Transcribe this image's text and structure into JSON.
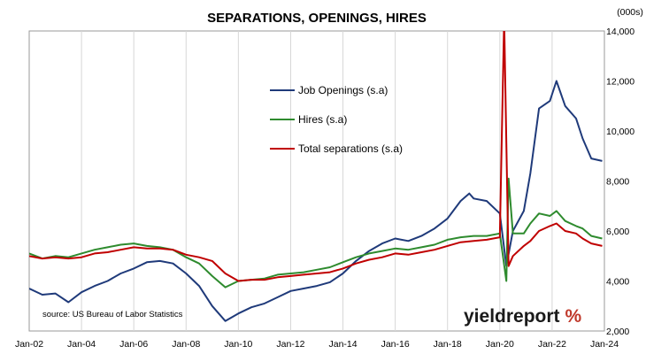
{
  "chart_data": {
    "type": "line",
    "title": "SEPARATIONS, OPENINGS, HIRES",
    "y_unit_label": "(000s)",
    "ylim": [
      2000,
      14000
    ],
    "y_ticks": [
      "2,000",
      "4,000",
      "6,000",
      "8,000",
      "10,000",
      "12,000",
      "14,000"
    ],
    "y_tick_values": [
      2000,
      4000,
      6000,
      8000,
      10000,
      12000,
      14000
    ],
    "x_range": [
      "2002-01",
      "2024-01"
    ],
    "x_ticks": [
      "Jan-02",
      "Jan-04",
      "Jan-06",
      "Jan-08",
      "Jan-10",
      "Jan-12",
      "Jan-14",
      "Jan-16",
      "Jan-18",
      "Jan-20",
      "Jan-22",
      "Jan-24"
    ],
    "x_tick_dates": [
      "2002-01",
      "2004-01",
      "2006-01",
      "2008-01",
      "2010-01",
      "2012-01",
      "2014-01",
      "2016-01",
      "2018-01",
      "2020-01",
      "2022-01",
      "2024-01"
    ],
    "grid": "vertical",
    "y_axis_side": "right",
    "legend_placement": "upper-center",
    "series": [
      {
        "name": "Job Openings (s.a)",
        "color": "#1f3a7a",
        "points": [
          [
            "2002-01",
            3700
          ],
          [
            "2002-07",
            3450
          ],
          [
            "2003-01",
            3500
          ],
          [
            "2003-07",
            3150
          ],
          [
            "2004-01",
            3550
          ],
          [
            "2004-07",
            3800
          ],
          [
            "2005-01",
            4000
          ],
          [
            "2005-07",
            4300
          ],
          [
            "2006-01",
            4500
          ],
          [
            "2006-07",
            4750
          ],
          [
            "2007-01",
            4800
          ],
          [
            "2007-07",
            4700
          ],
          [
            "2008-01",
            4300
          ],
          [
            "2008-07",
            3800
          ],
          [
            "2009-01",
            3000
          ],
          [
            "2009-07",
            2400
          ],
          [
            "2010-01",
            2700
          ],
          [
            "2010-07",
            2950
          ],
          [
            "2011-01",
            3100
          ],
          [
            "2011-07",
            3350
          ],
          [
            "2012-01",
            3600
          ],
          [
            "2012-07",
            3700
          ],
          [
            "2013-01",
            3800
          ],
          [
            "2013-07",
            3950
          ],
          [
            "2014-01",
            4300
          ],
          [
            "2014-07",
            4800
          ],
          [
            "2015-01",
            5200
          ],
          [
            "2015-07",
            5500
          ],
          [
            "2016-01",
            5700
          ],
          [
            "2016-07",
            5600
          ],
          [
            "2017-01",
            5800
          ],
          [
            "2017-07",
            6100
          ],
          [
            "2018-01",
            6500
          ],
          [
            "2018-07",
            7200
          ],
          [
            "2018-11",
            7500
          ],
          [
            "2019-01",
            7300
          ],
          [
            "2019-07",
            7200
          ],
          [
            "2020-01",
            6700
          ],
          [
            "2020-04",
            4600
          ],
          [
            "2020-07",
            6000
          ],
          [
            "2020-12",
            6800
          ],
          [
            "2021-03",
            8300
          ],
          [
            "2021-07",
            10900
          ],
          [
            "2021-12",
            11200
          ],
          [
            "2022-03",
            12000
          ],
          [
            "2022-07",
            11000
          ],
          [
            "2022-12",
            10500
          ],
          [
            "2023-03",
            9700
          ],
          [
            "2023-07",
            8900
          ],
          [
            "2023-12",
            8800
          ]
        ]
      },
      {
        "name": "Hires (s.a)",
        "color": "#2e8b2e",
        "points": [
          [
            "2002-01",
            5100
          ],
          [
            "2002-07",
            4900
          ],
          [
            "2003-01",
            5000
          ],
          [
            "2003-07",
            4950
          ],
          [
            "2004-01",
            5100
          ],
          [
            "2004-07",
            5250
          ],
          [
            "2005-01",
            5350
          ],
          [
            "2005-07",
            5450
          ],
          [
            "2006-01",
            5500
          ],
          [
            "2006-07",
            5400
          ],
          [
            "2007-01",
            5350
          ],
          [
            "2007-07",
            5250
          ],
          [
            "2008-01",
            4950
          ],
          [
            "2008-07",
            4700
          ],
          [
            "2009-01",
            4200
          ],
          [
            "2009-07",
            3750
          ],
          [
            "2010-01",
            4000
          ],
          [
            "2010-07",
            4050
          ],
          [
            "2011-01",
            4100
          ],
          [
            "2011-07",
            4250
          ],
          [
            "2012-01",
            4300
          ],
          [
            "2012-07",
            4350
          ],
          [
            "2013-01",
            4450
          ],
          [
            "2013-07",
            4550
          ],
          [
            "2014-01",
            4750
          ],
          [
            "2014-07",
            4950
          ],
          [
            "2015-01",
            5100
          ],
          [
            "2015-07",
            5200
          ],
          [
            "2016-01",
            5300
          ],
          [
            "2016-07",
            5250
          ],
          [
            "2017-01",
            5350
          ],
          [
            "2017-07",
            5450
          ],
          [
            "2018-01",
            5650
          ],
          [
            "2018-07",
            5750
          ],
          [
            "2019-01",
            5800
          ],
          [
            "2019-07",
            5800
          ],
          [
            "2020-01",
            5900
          ],
          [
            "2020-04",
            4000
          ],
          [
            "2020-05",
            8100
          ],
          [
            "2020-07",
            5900
          ],
          [
            "2020-12",
            5900
          ],
          [
            "2021-03",
            6300
          ],
          [
            "2021-07",
            6700
          ],
          [
            "2021-12",
            6600
          ],
          [
            "2022-03",
            6800
          ],
          [
            "2022-07",
            6400
          ],
          [
            "2022-12",
            6200
          ],
          [
            "2023-03",
            6100
          ],
          [
            "2023-07",
            5800
          ],
          [
            "2023-12",
            5700
          ]
        ]
      },
      {
        "name": "Total separations (s.a)",
        "color": "#c00000",
        "points": [
          [
            "2002-01",
            5000
          ],
          [
            "2002-07",
            4900
          ],
          [
            "2003-01",
            4950
          ],
          [
            "2003-07",
            4900
          ],
          [
            "2004-01",
            4950
          ],
          [
            "2004-07",
            5100
          ],
          [
            "2005-01",
            5150
          ],
          [
            "2005-07",
            5250
          ],
          [
            "2006-01",
            5350
          ],
          [
            "2006-07",
            5300
          ],
          [
            "2007-01",
            5300
          ],
          [
            "2007-07",
            5250
          ],
          [
            "2008-01",
            5050
          ],
          [
            "2008-07",
            4950
          ],
          [
            "2009-01",
            4800
          ],
          [
            "2009-07",
            4300
          ],
          [
            "2010-01",
            4000
          ],
          [
            "2010-07",
            4050
          ],
          [
            "2011-01",
            4050
          ],
          [
            "2011-07",
            4150
          ],
          [
            "2012-01",
            4200
          ],
          [
            "2012-07",
            4250
          ],
          [
            "2013-01",
            4300
          ],
          [
            "2013-07",
            4350
          ],
          [
            "2014-01",
            4500
          ],
          [
            "2014-07",
            4700
          ],
          [
            "2015-01",
            4850
          ],
          [
            "2015-07",
            4950
          ],
          [
            "2016-01",
            5100
          ],
          [
            "2016-07",
            5050
          ],
          [
            "2017-01",
            5150
          ],
          [
            "2017-07",
            5250
          ],
          [
            "2018-01",
            5400
          ],
          [
            "2018-07",
            5550
          ],
          [
            "2019-01",
            5600
          ],
          [
            "2019-07",
            5650
          ],
          [
            "2020-01",
            5750
          ],
          [
            "2020-03",
            14500
          ],
          [
            "2020-04",
            9500
          ],
          [
            "2020-05",
            4600
          ],
          [
            "2020-07",
            5000
          ],
          [
            "2020-12",
            5400
          ],
          [
            "2021-03",
            5600
          ],
          [
            "2021-07",
            6000
          ],
          [
            "2021-12",
            6200
          ],
          [
            "2022-03",
            6300
          ],
          [
            "2022-07",
            6000
          ],
          [
            "2022-12",
            5900
          ],
          [
            "2023-03",
            5700
          ],
          [
            "2023-07",
            5500
          ],
          [
            "2023-12",
            5400
          ]
        ]
      }
    ]
  },
  "source": "source: US Bureau of Labor Statistics",
  "logo": {
    "text": "yieldreport",
    "symbol": "%",
    "accent_color": "#c0392b"
  }
}
